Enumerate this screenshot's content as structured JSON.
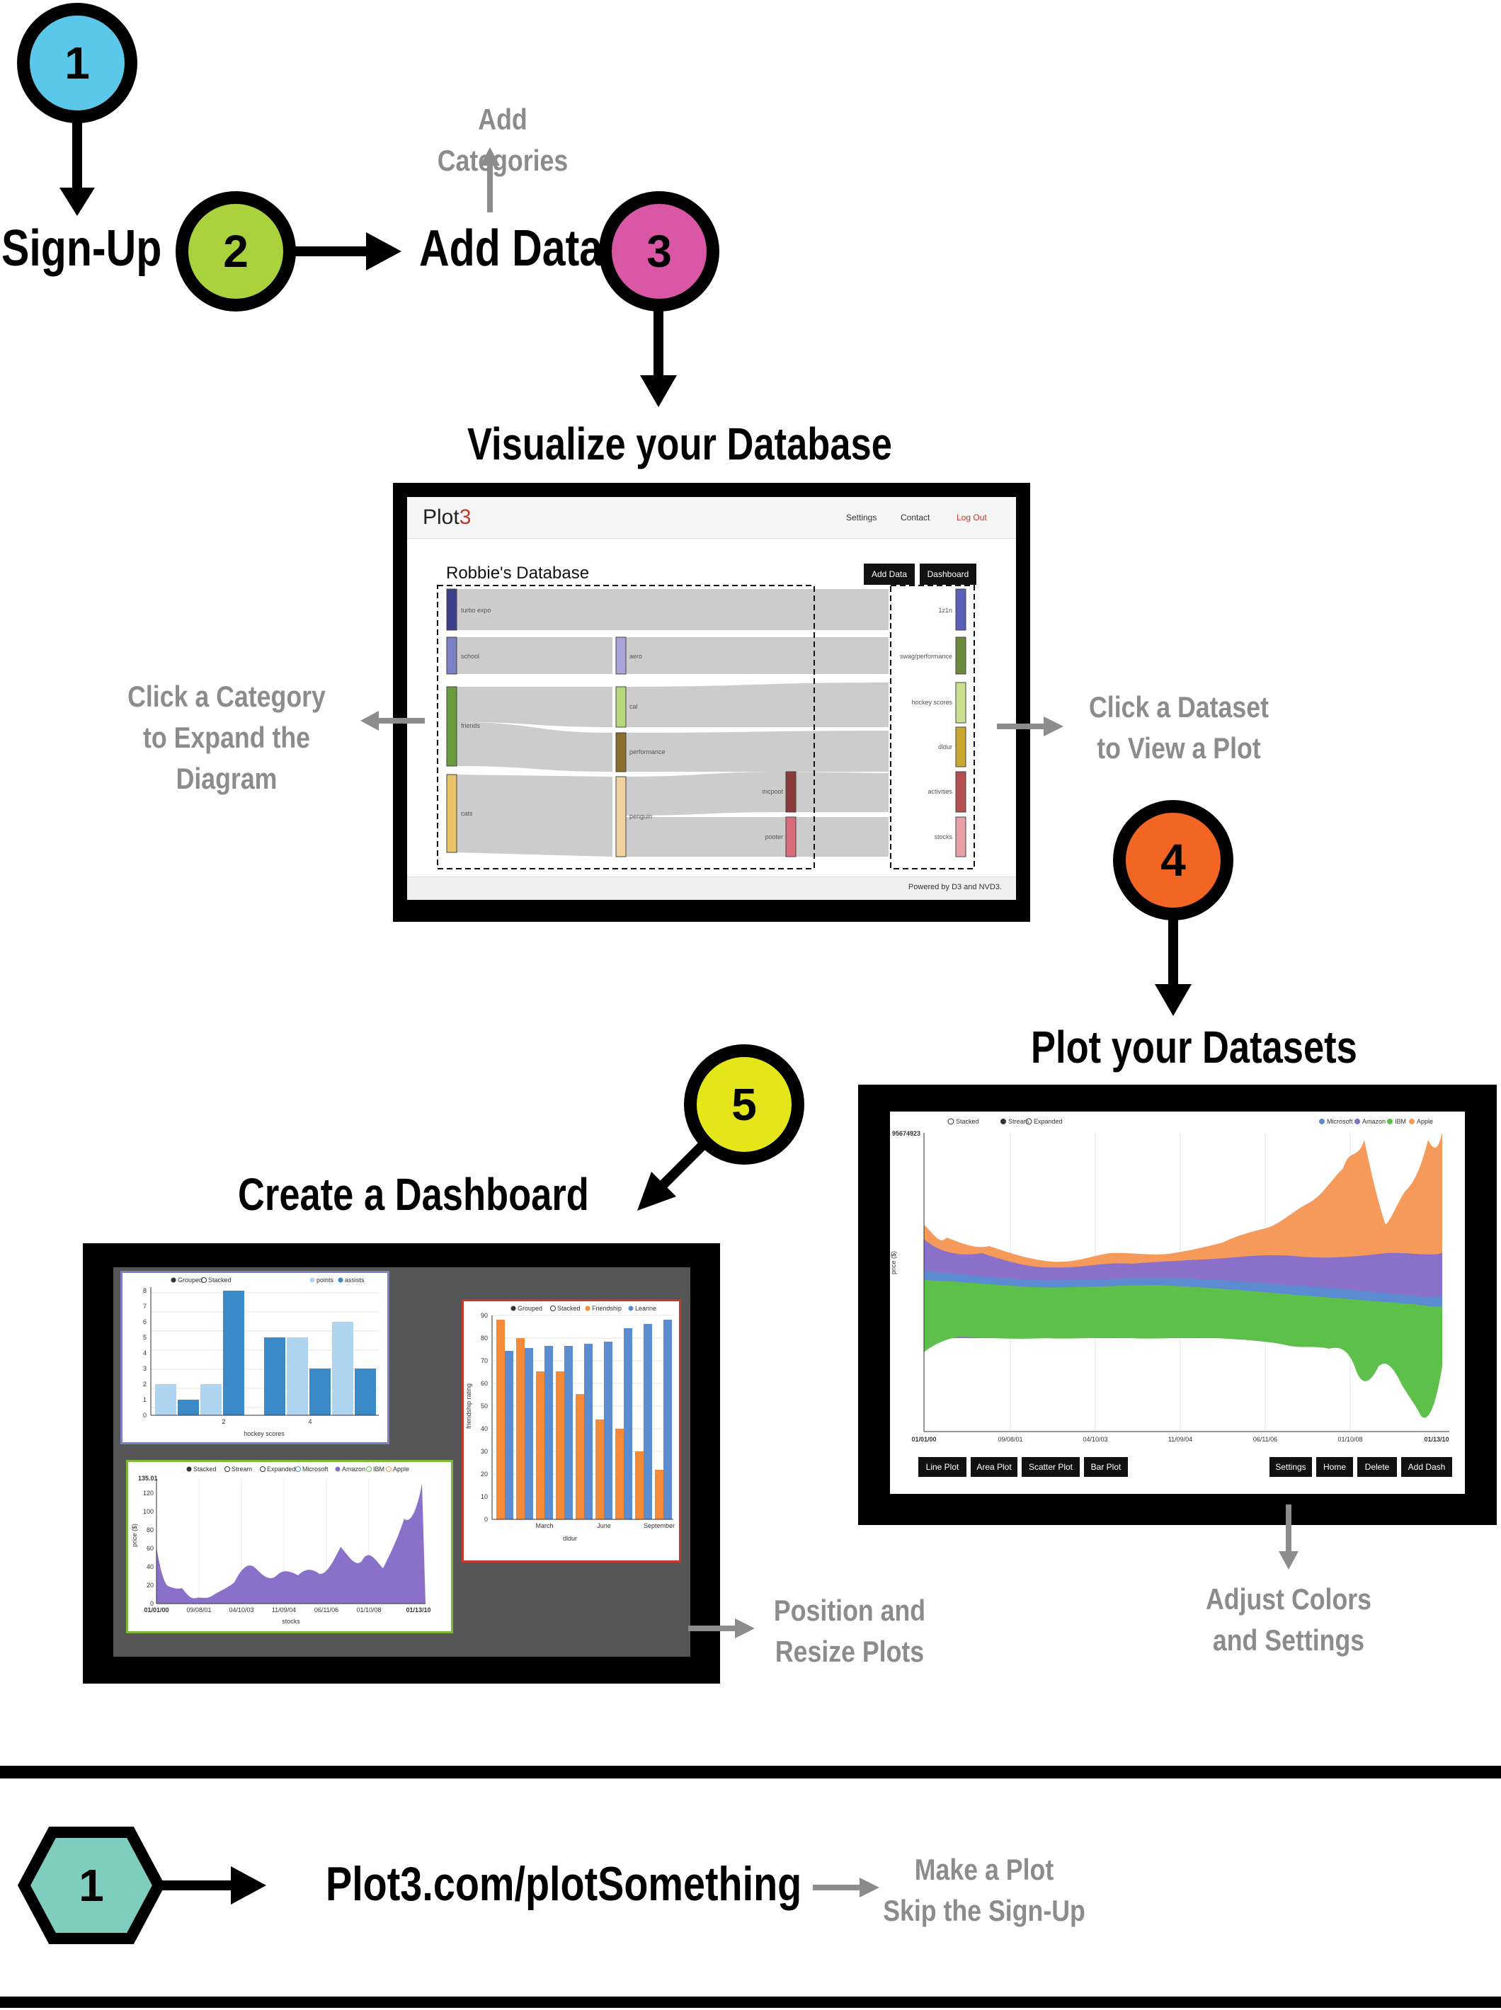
{
  "steps": {
    "step1": {
      "number": "1",
      "color": "#5bc8ea",
      "label": "Sign-Up"
    },
    "step2": {
      "number": "2",
      "color": "#aad23c",
      "label": "Add Data"
    },
    "step3": {
      "number": "3",
      "color": "#d957a5",
      "label": "Visualize your Database"
    },
    "step4": {
      "number": "4",
      "color": "#f26522",
      "label": "Plot your Datasets"
    },
    "step5": {
      "number": "5",
      "color": "#e5e619",
      "label": "Create a Dashboard"
    },
    "alt1": {
      "number": "1",
      "color": "#7ecdbf",
      "label": "Plot3.com/plotSomething"
    }
  },
  "annotations": {
    "add_categories": "Add Categories",
    "click_category": [
      "Click a Category",
      "to Expand the Diagram"
    ],
    "click_dataset": [
      "Click a Dataset",
      "to View a Plot"
    ],
    "adjust_colors": [
      "Adjust Colors",
      "and Settings"
    ],
    "position_resize": [
      "Position and",
      "Resize Plots"
    ],
    "make_plot": [
      "Make a Plot",
      "Skip the Sign-Up"
    ]
  },
  "database_screen": {
    "brand": "Plot",
    "brand_accent": "3",
    "nav": [
      "Settings",
      "Contact",
      "Log Out"
    ],
    "title": "Robbie's Database",
    "buttons": [
      "Add Data",
      "Dashboard"
    ],
    "footer": "Powered by D3 and NVD3.",
    "nodes": [
      {
        "label": "turbo expo",
        "color": "#3b3f8c"
      },
      {
        "label": "school",
        "color": "#7b7fc4"
      },
      {
        "label": "friends",
        "color": "#6b9a3e"
      },
      {
        "label": "cats",
        "color": "#e8c36a"
      },
      {
        "label": "aero",
        "color": "#a9a5d8"
      },
      {
        "label": "cal",
        "color": "#b5d67a"
      },
      {
        "label": "performance",
        "color": "#8c6e2c"
      },
      {
        "label": "penguin",
        "color": "#f0d2a0"
      },
      {
        "label": "mcpoot",
        "color": "#8b3a3a"
      },
      {
        "label": "pooter",
        "color": "#d96a78"
      },
      {
        "label": "1z1n",
        "color": "#5a5fb8"
      },
      {
        "label": "swag/performance",
        "color": "#6b8a3e"
      },
      {
        "label": "hockey scores",
        "color": "#c8e090"
      },
      {
        "label": "dldur",
        "color": "#c8a832"
      },
      {
        "label": "activities",
        "color": "#b55050"
      },
      {
        "label": "stocks",
        "color": "#e8a0a8"
      }
    ]
  },
  "plot_screen": {
    "top_value": "95674923",
    "mode_legend": [
      "Stacked",
      "Stream",
      "Expanded"
    ],
    "series_legend": [
      {
        "name": "Microsoft",
        "color": "#5b8bd0"
      },
      {
        "name": "Amazon",
        "color": "#8a70c8"
      },
      {
        "name": "IBM",
        "color": "#5cc04a"
      },
      {
        "name": "Apple",
        "color": "#f59a5a"
      }
    ],
    "y_label": "price ($)",
    "x_ticks": [
      "01/01/00",
      "09/08/01",
      "04/10/03",
      "11/09/04",
      "06/11/06",
      "01/10/08",
      "01/13/10"
    ],
    "left_buttons": [
      "Line Plot",
      "Area Plot",
      "Scatter Plot",
      "Bar Plot"
    ],
    "right_buttons": [
      "Settings",
      "Home",
      "Delete",
      "Add Dash"
    ]
  },
  "dashboard_screen": {
    "hockey": {
      "legend": [
        "Grouped",
        "Stacked",
        "points",
        "assists"
      ],
      "xlabel": "hockey scores",
      "x_ticks": [
        "2",
        "4"
      ],
      "y_ticks": [
        "0",
        "1",
        "2",
        "3",
        "4",
        "5",
        "6",
        "7",
        "8"
      ]
    },
    "stocks": {
      "legend": [
        "Stacked",
        "Stream",
        "Expanded",
        "Microsoft",
        "Amazon",
        "IBM",
        "Apple"
      ],
      "top_value": "135.01",
      "y_label": "price ($)",
      "xlabel": "stocks",
      "y_ticks": [
        "0",
        "20",
        "40",
        "60",
        "80",
        "100",
        "120"
      ],
      "x_ticks": [
        "01/01/00",
        "09/08/01",
        "04/10/03",
        "11/09/04",
        "06/11/06",
        "01/10/08",
        "01/13/10"
      ]
    },
    "dldur": {
      "legend": [
        "Grouped",
        "Stacked",
        "Friendship",
        "Leanne"
      ],
      "y_label": "friendship rating",
      "xlabel": "dldur",
      "x_ticks": [
        "March",
        "June",
        "September"
      ],
      "y_ticks": [
        "0",
        "10",
        "20",
        "30",
        "40",
        "50",
        "60",
        "70",
        "80",
        "90"
      ]
    }
  }
}
